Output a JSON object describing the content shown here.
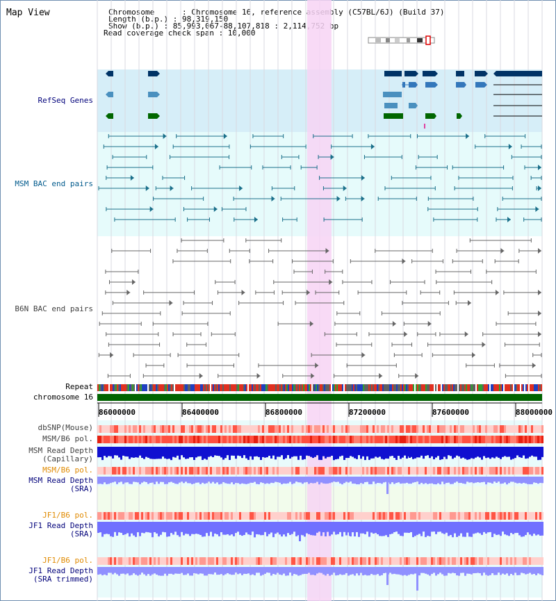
{
  "view": {
    "title": "Map View",
    "info": {
      "chromosome_label": "Chromosome      : Chromosome 16, reference assembly (C57BL/6J) (Build 37)",
      "length_label": "Length (b.p.) : 98,319,150",
      "show_label": "Show (b.p.) : 85,993,067-88,107,818 : 2,114,752 bp",
      "span_label": "Read coverage check span : 10,000"
    }
  },
  "tracks": {
    "refseq": "RefSeq Genes",
    "msm_bac": "MSM BAC end pairs",
    "b6n_bac": "B6N BAC end pairs",
    "repeat": "Repeat",
    "chromosome": "chromosome 16",
    "dbsnp": "dbSNP(Mouse)",
    "msm_b6_pol_1": "MSM/B6 pol.",
    "msm_depth_cap_1": "MSM Read Depth",
    "msm_depth_cap_2": "(Capillary)",
    "msm_b6_pol_2": "MSM/B6 pol.",
    "msm_depth_sra_1": "MSM Read Depth",
    "msm_depth_sra_2": "(SRA)",
    "jf1_b6_pol_1": "JF1/B6 pol.",
    "jf1_depth_sra_1": "JF1 Read Depth",
    "jf1_depth_sra_2": "(SRA)",
    "jf1_b6_pol_2": "JF1/B6 pol.",
    "jf1_depth_trim_1": "JF1 Read Depth",
    "jf1_depth_trim_2": "(SRA trimmed)"
  },
  "axis": {
    "ticks": [
      "86000000",
      "86400000",
      "86800000",
      "87200000",
      "87600000",
      "88000000"
    ]
  },
  "colors": {
    "refseq_bg": "#d6eef8",
    "bac_bg": "#e6fbfb",
    "highlight": "#f7d3f4",
    "msm_label": "#005a8c",
    "b6n_label": "#404040",
    "navy_label": "#00007a",
    "orange_label": "#e08a00",
    "chromosome_bar": "#006400"
  }
}
